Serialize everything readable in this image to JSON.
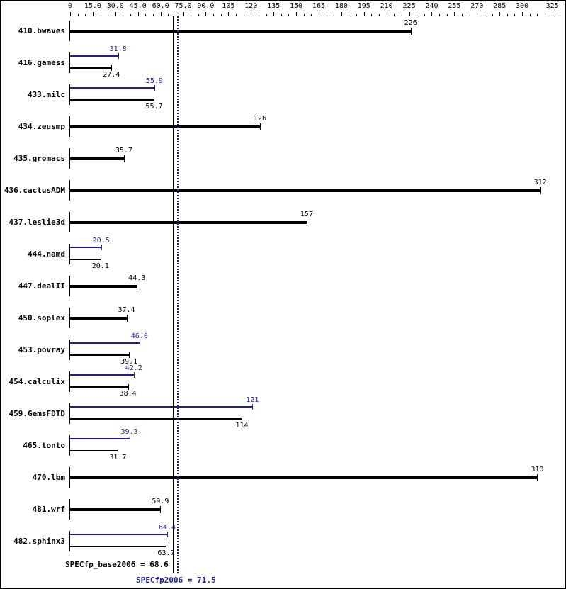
{
  "chart_data": {
    "type": "bar",
    "orientation": "horizontal",
    "title": "",
    "xlabel": "",
    "ylabel": "",
    "xlim": [
      0,
      325
    ],
    "x_ticks": [
      "0",
      "15.0",
      "30.0",
      "45.0",
      "60.0",
      "75.0",
      "90.0",
      "105",
      "120",
      "135",
      "150",
      "165",
      "180",
      "195",
      "210",
      "225",
      "240",
      "255",
      "270",
      "285",
      "300",
      "325"
    ],
    "categories": [
      "410.bwaves",
      "416.gamess",
      "433.milc",
      "434.zeusmp",
      "435.gromacs",
      "436.cactusADM",
      "437.leslie3d",
      "444.namd",
      "447.dealII",
      "450.soplex",
      "453.povray",
      "454.calculix",
      "459.GemsFDTD",
      "465.tonto",
      "470.lbm",
      "481.wrf",
      "482.sphinx3"
    ],
    "series": [
      {
        "name": "SPECfp_base2006",
        "color": "#000000",
        "values": [
          226,
          27.4,
          55.7,
          126,
          35.7,
          312,
          157,
          20.1,
          44.3,
          37.4,
          39.1,
          38.4,
          114,
          31.7,
          310,
          59.9,
          63.7
        ]
      },
      {
        "name": "SPECfp2006 (peak)",
        "color": "#1f1f9a",
        "values": [
          null,
          31.8,
          55.9,
          null,
          null,
          null,
          null,
          20.5,
          null,
          null,
          46.0,
          42.2,
          121,
          39.3,
          null,
          null,
          64.4
        ]
      }
    ],
    "reference_lines": [
      {
        "label": "SPECfp_base2006 = 68.6",
        "value": 68.6,
        "color": "#000000",
        "style": "solid"
      },
      {
        "label": "SPECfp2006 = 71.5",
        "value": 71.5,
        "color": "#1f1f9a",
        "style": "dotted"
      }
    ],
    "grid": false,
    "legend": "none"
  },
  "labels": {
    "ticks": [
      "0",
      "15.0",
      "30.0",
      "45.0",
      "60.0",
      "75.0",
      "90.0",
      "105",
      "120",
      "135",
      "150",
      "165",
      "180",
      "195",
      "210",
      "225",
      "240",
      "255",
      "270",
      "285",
      "300",
      "325"
    ],
    "benchmarks": [
      "410.bwaves",
      "416.gamess",
      "433.milc",
      "434.zeusmp",
      "435.gromacs",
      "436.cactusADM",
      "437.leslie3d",
      "444.namd",
      "447.dealII",
      "450.soplex",
      "453.povray",
      "454.calculix",
      "459.GemsFDTD",
      "465.tonto",
      "470.lbm",
      "481.wrf",
      "482.sphinx3"
    ],
    "base_values": [
      "226",
      "27.4",
      "55.7",
      "126",
      "35.7",
      "312",
      "157",
      "20.1",
      "44.3",
      "37.4",
      "39.1",
      "38.4",
      "114",
      "31.7",
      "310",
      "59.9",
      "63.7"
    ],
    "peak_values": [
      "",
      "31.8",
      "55.9",
      "",
      "",
      "",
      "",
      "20.5",
      "",
      "",
      "46.0",
      "42.2",
      "121",
      "39.3",
      "",
      "",
      "64.4"
    ],
    "base_ref": "SPECfp_base2006 = 68.6",
    "peak_ref": "SPECfp2006 = 71.5"
  },
  "colors": {
    "base": "#000000",
    "peak": "#1f1f9a"
  }
}
